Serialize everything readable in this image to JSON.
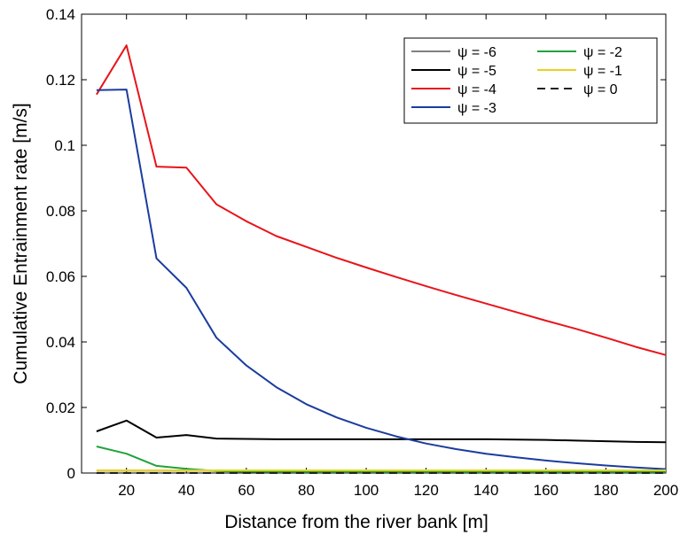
{
  "chart_data": {
    "type": "line",
    "title": "",
    "xlabel": "Distance from the river bank [m]",
    "ylabel": "Cumulative Entrainment rate [m/s]",
    "xlim": [
      5,
      200
    ],
    "ylim": [
      0,
      0.14
    ],
    "xticks": [
      20,
      40,
      60,
      80,
      100,
      120,
      140,
      160,
      180,
      200
    ],
    "xtick_labels": [
      "20",
      "40",
      "60",
      "80",
      "100",
      "120",
      "140",
      "160",
      "180",
      "200"
    ],
    "yticks": [
      0,
      0.02,
      0.04,
      0.06,
      0.08,
      0.1,
      0.12,
      0.14
    ],
    "ytick_labels": [
      "0",
      "0.02",
      "0.04",
      "0.06",
      "0.08",
      "0.1",
      "0.12",
      "0.14"
    ],
    "grid": false,
    "legend_position": "top-right",
    "x": [
      10,
      20,
      30,
      40,
      50,
      60,
      70,
      80,
      90,
      100,
      110,
      120,
      130,
      140,
      150,
      160,
      170,
      180,
      190,
      200
    ],
    "series": [
      {
        "name": "ψ = -6",
        "color": "#808080",
        "dash": "solid",
        "values": [
          0.0007,
          0.0007,
          0.0007,
          0.0007,
          0.0007,
          0.0007,
          0.0007,
          0.0007,
          0.0007,
          0.0007,
          0.0007,
          0.0007,
          0.0007,
          0.0007,
          0.0007,
          0.0007,
          0.0007,
          0.0007,
          0.0007,
          0.0007
        ]
      },
      {
        "name": "ψ = -5",
        "color": "#000000",
        "dash": "solid",
        "values": [
          0.0127,
          0.016,
          0.0108,
          0.0116,
          0.0105,
          0.0104,
          0.0103,
          0.0103,
          0.0103,
          0.0103,
          0.0103,
          0.0103,
          0.0103,
          0.0103,
          0.0102,
          0.0101,
          0.0099,
          0.0097,
          0.0095,
          0.0094
        ]
      },
      {
        "name": "ψ = -4",
        "color": "#e8141b",
        "dash": "solid",
        "values": [
          0.1155,
          0.1305,
          0.0935,
          0.0932,
          0.082,
          0.0768,
          0.0723,
          0.069,
          0.0657,
          0.0627,
          0.0598,
          0.057,
          0.0543,
          0.0517,
          0.0491,
          0.0465,
          0.044,
          0.0413,
          0.0385,
          0.036
        ]
      },
      {
        "name": "ψ = -3",
        "color": "#1b3c9e",
        "dash": "solid",
        "values": [
          0.1168,
          0.117,
          0.0655,
          0.0565,
          0.0413,
          0.0328,
          0.0262,
          0.021,
          0.017,
          0.0138,
          0.0112,
          0.009,
          0.0073,
          0.0059,
          0.0048,
          0.0038,
          0.003,
          0.0023,
          0.0017,
          0.0012
        ]
      },
      {
        "name": "ψ = -2",
        "color": "#1fa33a",
        "dash": "solid",
        "values": [
          0.0081,
          0.0059,
          0.0022,
          0.0013,
          0.0006,
          0.0004,
          0.0003,
          0.0003,
          0.0003,
          0.0003,
          0.0003,
          0.0003,
          0.0003,
          0.0003,
          0.0003,
          0.0003,
          0.0003,
          0.0003,
          0.0003,
          0.0003
        ]
      },
      {
        "name": "ψ = -1",
        "color": "#e8d31a",
        "dash": "solid",
        "values": [
          0.0008,
          0.0008,
          0.0008,
          0.0008,
          0.0008,
          0.0008,
          0.0008,
          0.0008,
          0.0008,
          0.0008,
          0.0008,
          0.0008,
          0.0008,
          0.0008,
          0.0008,
          0.0008,
          0.0008,
          0.0008,
          0.0008,
          0.0008
        ]
      },
      {
        "name": "ψ = 0",
        "color": "#222222",
        "dash": "dashed",
        "values": [
          0,
          0,
          0,
          0,
          0,
          0,
          0,
          0,
          0,
          0,
          0,
          0,
          0,
          0,
          0,
          0,
          0,
          0,
          0,
          0
        ]
      }
    ]
  }
}
